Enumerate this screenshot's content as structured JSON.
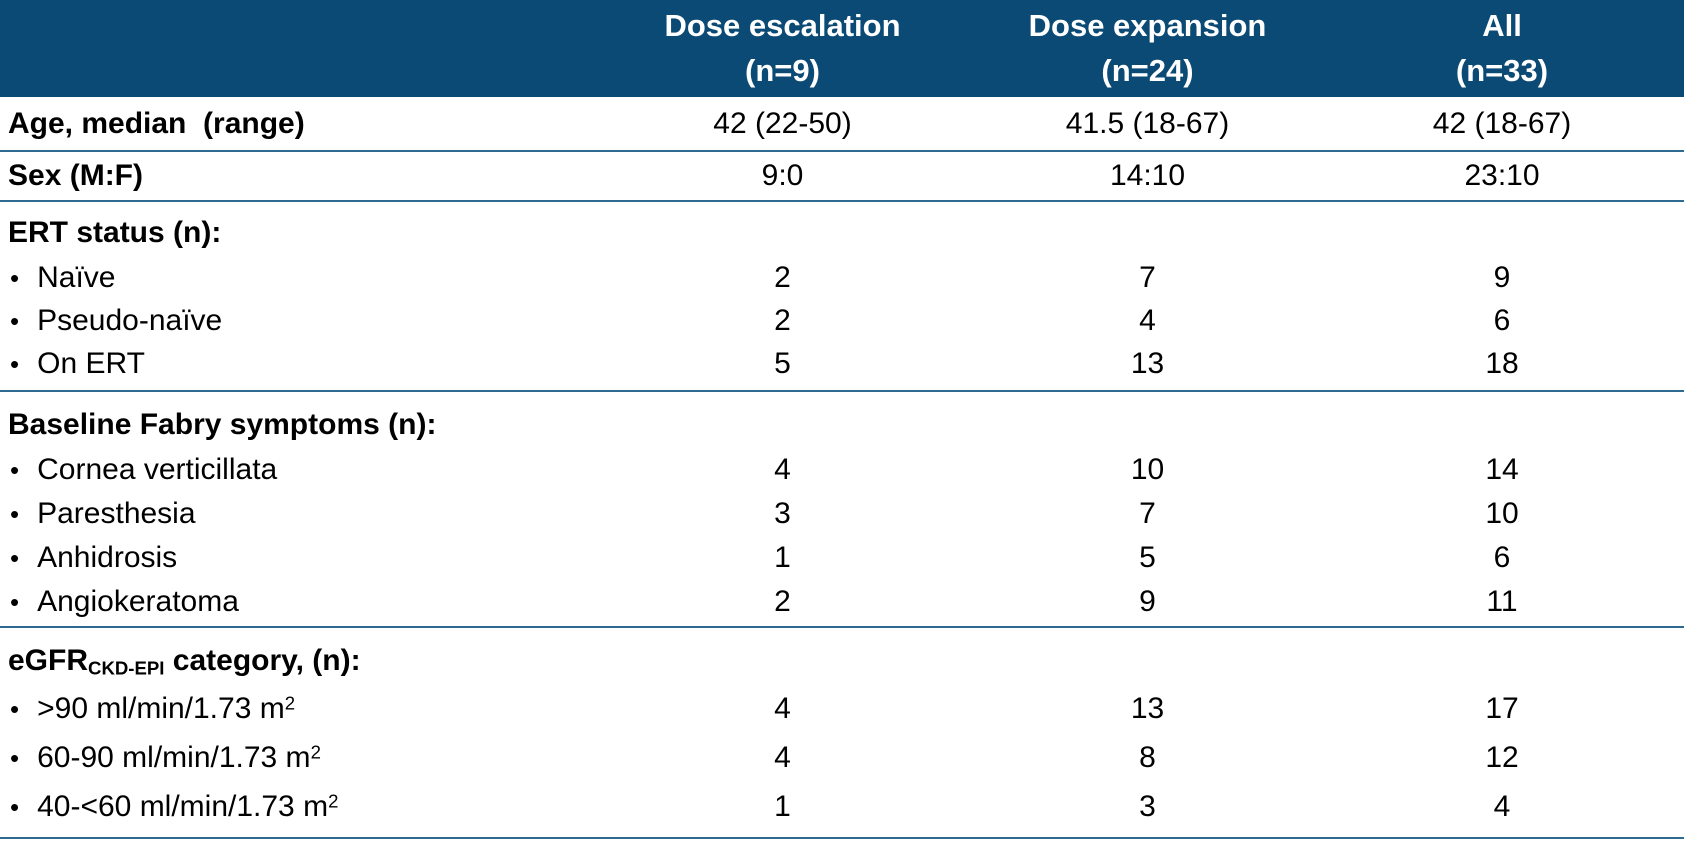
{
  "colors": {
    "header_bg": "#0b4a74",
    "header_text": "#ffffff",
    "divider": "#2e6a8f",
    "body_text": "#000000"
  },
  "bullet": "•",
  "table": {
    "columns": [
      {
        "line1": "Dose escalation",
        "line2": "(n=9)"
      },
      {
        "line1": "Dose expansion",
        "line2": "(n=24)"
      },
      {
        "line1": "All",
        "line2": "(n=33)"
      }
    ],
    "simple_rows": [
      {
        "label": "Age, median  (range)",
        "values": [
          "42 (22-50)",
          "41.5 (18-67)",
          "42 (18-67)"
        ]
      },
      {
        "label": "Sex (M:F)",
        "values": [
          "9:0",
          "14:10",
          "23:10"
        ]
      }
    ],
    "sections": [
      {
        "header": "ERT status (n):",
        "items": [
          {
            "label": "Naïve",
            "values": [
              "2",
              "7",
              "9"
            ]
          },
          {
            "label": "Pseudo-naïve",
            "values": [
              "2",
              "4",
              "6"
            ]
          },
          {
            "label": "On ERT",
            "values": [
              "5",
              "13",
              "18"
            ]
          }
        ]
      },
      {
        "header": "Baseline Fabry symptoms (n):",
        "items": [
          {
            "label": "Cornea verticillata",
            "values": [
              "4",
              "10",
              "14"
            ]
          },
          {
            "label": "Paresthesia",
            "values": [
              "3",
              "7",
              "10"
            ]
          },
          {
            "label": "Anhidrosis",
            "values": [
              "1",
              "5",
              "6"
            ]
          },
          {
            "label": "Angiokeratoma",
            "values": [
              "2",
              "9",
              "11"
            ]
          }
        ]
      },
      {
        "header_main": "eGFR",
        "header_sub": "CKD-EPI",
        "header_rest": " category, (n):",
        "items": [
          {
            "label": ">90 ml/min/1.73 m",
            "sup": "2",
            "values": [
              "4",
              "13",
              "17"
            ]
          },
          {
            "label": "60-90 ml/min/1.73 m",
            "sup": "2",
            "values": [
              "4",
              "8",
              "12"
            ]
          },
          {
            "label": "40-<60 ml/min/1.73 m",
            "sup": "2",
            "values": [
              "1",
              "3",
              "4"
            ]
          }
        ]
      }
    ]
  }
}
